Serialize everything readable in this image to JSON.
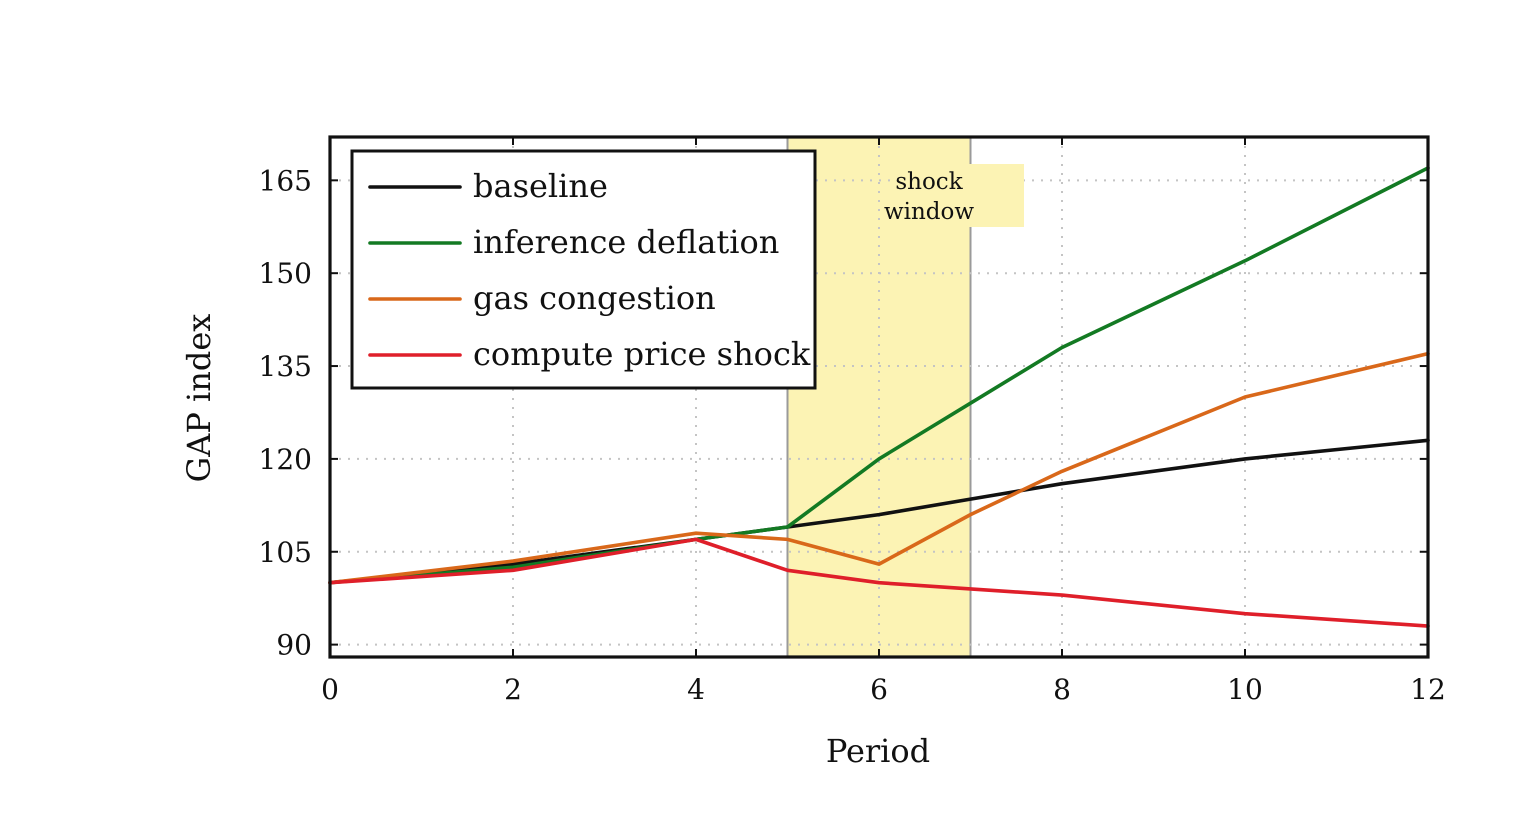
{
  "chart_data": {
    "type": "line",
    "xlabel": "Period",
    "ylabel": "GAP index",
    "xlim": [
      0,
      12
    ],
    "ylim": [
      88,
      172
    ],
    "x_ticks": [
      0,
      2,
      4,
      6,
      8,
      10,
      12
    ],
    "y_ticks": [
      90,
      105,
      120,
      135,
      150,
      165
    ],
    "grid": true,
    "legend_position": "top-left",
    "shaded_region": {
      "x_start": 5,
      "x_end": 7,
      "label_lines": [
        "shock",
        "window"
      ],
      "color": "#fcf3b4"
    },
    "series": [
      {
        "name": "baseline",
        "color": "#111111",
        "x": [
          0,
          2,
          4,
          5,
          6,
          7,
          8,
          10,
          12
        ],
        "y": [
          100,
          103,
          107,
          109,
          111,
          113.5,
          116,
          120,
          123
        ]
      },
      {
        "name": "inference deflation",
        "color": "#137a23",
        "x": [
          0,
          2,
          4,
          5,
          6,
          7,
          8,
          10,
          12
        ],
        "y": [
          100,
          102.5,
          107,
          109,
          120,
          129,
          138,
          152,
          167
        ]
      },
      {
        "name": "gas congestion",
        "color": "#d9681a",
        "x": [
          0,
          2,
          4,
          5,
          6,
          7,
          8,
          10,
          12
        ],
        "y": [
          100,
          103.5,
          108,
          107,
          103,
          111,
          118,
          130,
          137
        ]
      },
      {
        "name": "compute price shock",
        "color": "#df1f2a",
        "x": [
          0,
          2,
          4,
          5,
          6,
          7,
          8,
          10,
          12
        ],
        "y": [
          100,
          102,
          107,
          102,
          100,
          99,
          98,
          95,
          93
        ]
      }
    ]
  }
}
